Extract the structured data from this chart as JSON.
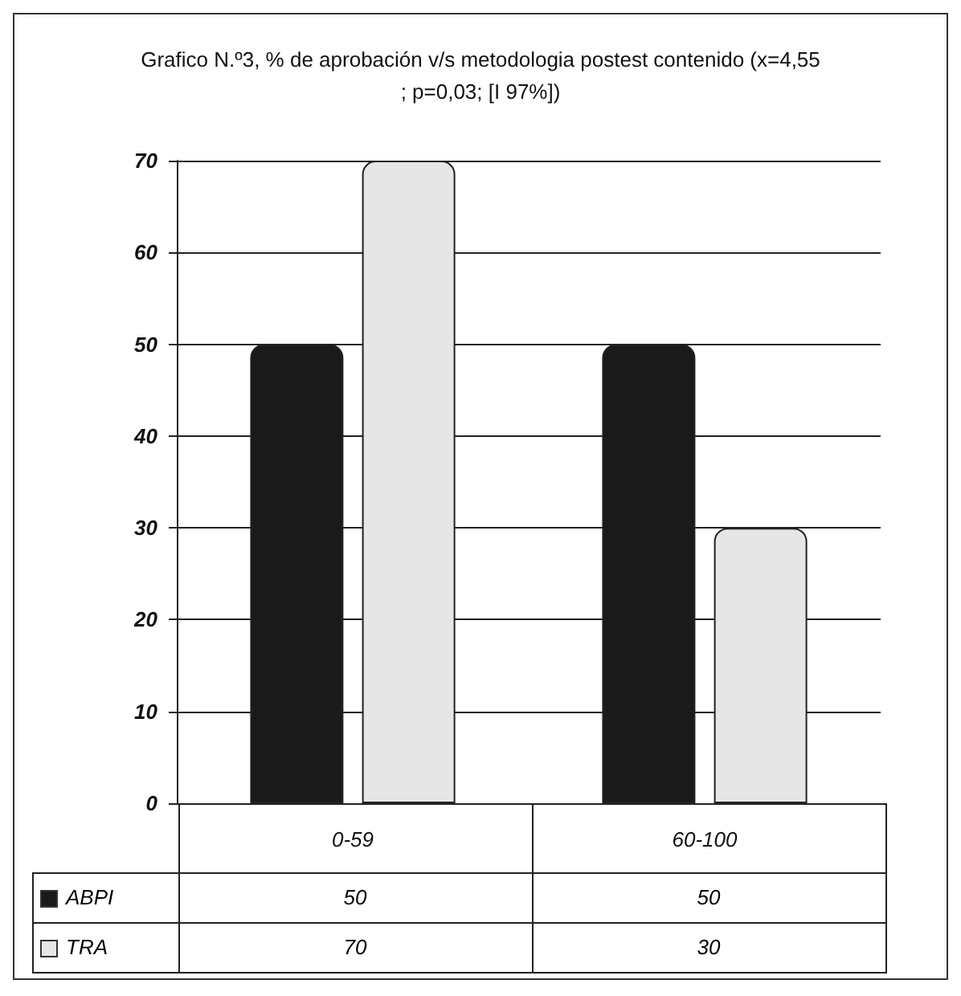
{
  "chart_data": {
    "type": "bar",
    "title": "Grafico N.º3, % de aprobación v/s metodologia postest contenido (x=4,55; p=0,03; [I 97%])",
    "categories": [
      "0-59",
      "60-100"
    ],
    "series": [
      {
        "name": "ABPI",
        "color": "#1a1a1a",
        "values": [
          50,
          50
        ]
      },
      {
        "name": "TRA",
        "color": "#e6e6e6",
        "values": [
          70,
          30
        ]
      }
    ],
    "ylim": [
      0,
      70
    ],
    "yticks": [
      0,
      10,
      20,
      30,
      40,
      50,
      60,
      70
    ],
    "grid": "y",
    "legend": "bottom left",
    "data_labels": true
  }
}
